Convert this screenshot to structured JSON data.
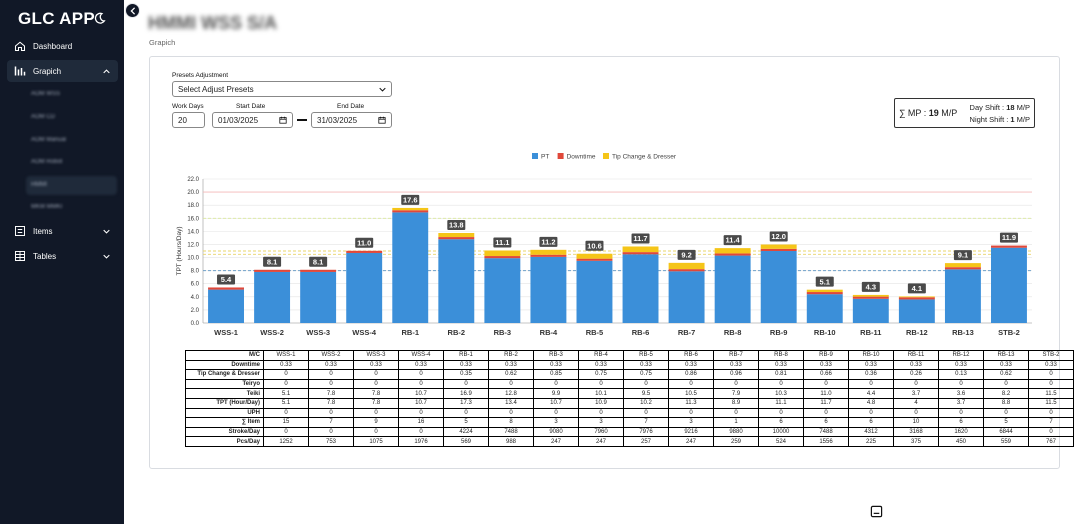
{
  "app": {
    "title": "GLC APP"
  },
  "sidebar": {
    "dashboard": "Dashboard",
    "grapich": "Grapich",
    "sub_items": [
      "AOM WSS",
      "AOM CD",
      "AOM Manual",
      "AOM Robot",
      "HMMI",
      "MKM MMKI"
    ],
    "items": "Items",
    "tables": "Tables"
  },
  "header": {
    "company": "HMMI WSS S/A",
    "breadcrumb": "Grapich"
  },
  "form": {
    "presets_label": "Presets Adjustment",
    "presets_value": "Select Adjust Presets",
    "workdays_label": "Work Days",
    "workdays_value": "20",
    "start_label": "Start Date",
    "start_value": "01/03/2025",
    "end_label": "End Date",
    "end_value": "31/03/2025"
  },
  "summary": {
    "mp_text": "∑ MP : ",
    "mp_value": "19",
    "mp_unit": " M/P",
    "day_label": "Day Shift : ",
    "day_value": "18",
    "night_label": "Night Shift : ",
    "night_value": "1",
    "unit": " M/P"
  },
  "colors": {
    "pt": "#3b8fd9",
    "downtime": "#e0483a",
    "tip": "#f5c518",
    "sidebar": "#111827"
  },
  "chart_data": {
    "type": "bar",
    "stacked": true,
    "ylabel": "TPT (Hours/Day)",
    "ylim": [
      0,
      22
    ],
    "yticks": [
      0,
      2,
      4,
      6,
      8,
      10,
      12,
      14,
      16,
      18,
      20,
      22
    ],
    "categories": [
      "WSS-1",
      "WSS-2",
      "WSS-3",
      "WSS-4",
      "RB-1",
      "RB-2",
      "RB-3",
      "RB-4",
      "RB-5",
      "RB-6",
      "RB-7",
      "RB-8",
      "RB-9",
      "RB-10",
      "RB-11",
      "RB-12",
      "RB-13",
      "STB-2"
    ],
    "series": [
      {
        "name": "PT",
        "color": "#3b8fd9",
        "values": [
          5.1,
          7.8,
          7.8,
          10.7,
          16.9,
          12.8,
          9.9,
          10.1,
          9.5,
          10.5,
          7.9,
          10.3,
          11.0,
          4.4,
          3.7,
          3.6,
          8.2,
          11.5
        ]
      },
      {
        "name": "Downtime",
        "color": "#e0483a",
        "values": [
          0.33,
          0.33,
          0.33,
          0.33,
          0.33,
          0.33,
          0.33,
          0.33,
          0.33,
          0.33,
          0.33,
          0.33,
          0.33,
          0.33,
          0.33,
          0.33,
          0.33,
          0.33
        ]
      },
      {
        "name": "Tip Change & Dresser",
        "color": "#f5c518",
        "values": [
          0,
          0,
          0,
          0,
          0.35,
          0.62,
          0.85,
          0.75,
          0.75,
          0.86,
          0.96,
          0.81,
          0.66,
          0.36,
          0.26,
          0.13,
          0.62,
          0
        ]
      }
    ],
    "totals": [
      "5.4",
      "8.1",
      "8.1",
      "11.0",
      "17.6",
      "13.8",
      "11.1",
      "11.2",
      "10.6",
      "11.7",
      "9.2",
      "11.4",
      "12.0",
      "5.1",
      "4.3",
      "4.1",
      "9.1",
      "11.9"
    ],
    "reference_lines": [
      {
        "value": 20.0,
        "color": "#f4b8b8"
      },
      {
        "value": 16.0,
        "color": "#d9e89a"
      },
      {
        "value": 11.0,
        "color": "#e8d46a"
      },
      {
        "value": 10.5,
        "color": "#e8d46a"
      },
      {
        "value": 8.0,
        "color": "#6fa0c8"
      }
    ],
    "legend_position": "top-center"
  },
  "table": {
    "row_headers": [
      "M/C",
      "Downtime",
      "Tip Change & Dresser",
      "Teiryo",
      "Teiki",
      "TPT (Hour/Day)",
      "UPH",
      "∑ Item",
      "Stroke/Day",
      "Pcs/Day"
    ],
    "rows": [
      [
        "WSS-1",
        "WSS-2",
        "WSS-3",
        "WSS-4",
        "RB-1",
        "RB-2",
        "RB-3",
        "RB-4",
        "RB-5",
        "RB-6",
        "RB-7",
        "RB-8",
        "RB-9",
        "RB-10",
        "RB-11",
        "RB-12",
        "RB-13",
        "STB-2"
      ],
      [
        "0.33",
        "0.33",
        "0.33",
        "0.33",
        "0.33",
        "0.33",
        "0.33",
        "0.33",
        "0.33",
        "0.33",
        "0.33",
        "0.33",
        "0.33",
        "0.33",
        "0.33",
        "0.33",
        "0.33",
        "0.33"
      ],
      [
        "0",
        "0",
        "0",
        "0",
        "0.35",
        "0.62",
        "0.85",
        "0.75",
        "0.75",
        "0.86",
        "0.96",
        "0.81",
        "0.66",
        "0.36",
        "0.26",
        "0.13",
        "0.62",
        "0"
      ],
      [
        "0",
        "0",
        "0",
        "0",
        "0",
        "0",
        "0",
        "0",
        "0",
        "0",
        "0",
        "0",
        "0",
        "0",
        "0",
        "0",
        "0",
        "0"
      ],
      [
        "5.1",
        "7.8",
        "7.8",
        "10.7",
        "16.9",
        "12.8",
        "9.9",
        "10.1",
        "9.5",
        "10.5",
        "7.9",
        "10.3",
        "11.0",
        "4.4",
        "3.7",
        "3.6",
        "8.2",
        "11.5"
      ],
      [
        "5.1",
        "7.8",
        "7.8",
        "10.7",
        "17.3",
        "13.4",
        "10.7",
        "10.9",
        "10.2",
        "11.3",
        "8.9",
        "11.1",
        "11.7",
        "4.8",
        "4",
        "3.7",
        "8.8",
        "11.5"
      ],
      [
        "0",
        "0",
        "0",
        "0",
        "0",
        "0",
        "0",
        "0",
        "0",
        "0",
        "0",
        "0",
        "0",
        "0",
        "0",
        "0",
        "0",
        "0"
      ],
      [
        "15",
        "7",
        "9",
        "16",
        "5",
        "8",
        "3",
        "3",
        "7",
        "3",
        "1",
        "6",
        "6",
        "6",
        "10",
        "6",
        "5",
        "7"
      ],
      [
        "0",
        "0",
        "0",
        "0",
        "4224",
        "7488",
        "9080",
        "7960",
        "7976",
        "9216",
        "9880",
        "10000",
        "7488",
        "4312",
        "3168",
        "1620",
        "6844",
        "0"
      ],
      [
        "1252",
        "753",
        "1075",
        "1976",
        "569",
        "988",
        "247",
        "247",
        "257",
        "247",
        "259",
        "524",
        "1556",
        "225",
        "375",
        "450",
        "559",
        "767"
      ]
    ]
  }
}
